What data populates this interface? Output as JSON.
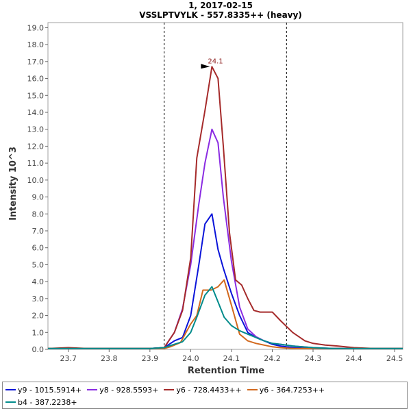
{
  "chart_data": {
    "type": "line",
    "title": "1, 2017-02-15",
    "subtitle": "VSSLPTVYLK - 557.8335++ (heavy)",
    "xlabel": "Retention Time",
    "ylabel": "Intensity 10^3",
    "xlim": [
      23.65,
      24.52
    ],
    "ylim": [
      0,
      19.3
    ],
    "xticks": [
      "23.7",
      "23.8",
      "23.9",
      "24.0",
      "24.1",
      "24.2",
      "24.3",
      "24.4",
      "24.5"
    ],
    "xtick_values": [
      23.7,
      23.8,
      23.9,
      24.0,
      24.1,
      24.2,
      24.3,
      24.4,
      24.5
    ],
    "yticks": [
      "0.0",
      "1.0",
      "2.0",
      "3.0",
      "4.0",
      "5.0",
      "6.0",
      "7.0",
      "8.0",
      "9.0",
      "10.0",
      "11.0",
      "12.0",
      "13.0",
      "14.0",
      "15.0",
      "16.0",
      "17.0",
      "18.0",
      "19.0"
    ],
    "ytick_values": [
      0,
      1,
      2,
      3,
      4,
      5,
      6,
      7,
      8,
      9,
      10,
      11,
      12,
      13,
      14,
      15,
      16,
      17,
      18,
      19
    ],
    "vlines": [
      23.935,
      24.235
    ],
    "peak_annotation": {
      "label": "24.1",
      "x": 24.052,
      "y": 16.7,
      "color": "#8b1a1a"
    },
    "series": [
      {
        "name": "y9 - 1015.5914+",
        "color": "#0a14d9",
        "x": [
          23.65,
          23.7,
          23.75,
          23.8,
          23.85,
          23.9,
          23.935,
          23.96,
          23.98,
          24.0,
          24.02,
          24.035,
          24.052,
          24.067,
          24.08,
          24.1,
          24.12,
          24.14,
          24.16,
          24.18,
          24.2,
          24.22,
          24.25,
          24.3,
          24.35,
          24.4,
          24.45,
          24.52
        ],
        "y": [
          0.05,
          0.05,
          0.05,
          0.05,
          0.05,
          0.05,
          0.1,
          0.5,
          0.7,
          2.0,
          5.0,
          7.4,
          8.0,
          5.9,
          4.8,
          3.3,
          2.0,
          1.0,
          0.7,
          0.5,
          0.3,
          0.2,
          0.1,
          0.05,
          0.05,
          0.05,
          0.05,
          0.05
        ]
      },
      {
        "name": "y8 - 928.5593+",
        "color": "#8a2be2",
        "x": [
          23.65,
          23.7,
          23.75,
          23.8,
          23.85,
          23.9,
          23.935,
          23.96,
          23.98,
          24.0,
          24.02,
          24.035,
          24.052,
          24.067,
          24.08,
          24.1,
          24.12,
          24.14,
          24.16,
          24.18,
          24.2,
          24.22,
          24.25,
          24.3,
          24.35,
          24.4,
          24.45,
          24.52
        ],
        "y": [
          0.05,
          0.05,
          0.05,
          0.05,
          0.05,
          0.05,
          0.1,
          1.0,
          2.4,
          5.0,
          8.6,
          11.0,
          13.0,
          12.2,
          9.0,
          5.2,
          2.5,
          1.2,
          0.75,
          0.5,
          0.35,
          0.3,
          0.2,
          0.1,
          0.05,
          0.05,
          0.05,
          0.05
        ]
      },
      {
        "name": "y6 - 728.4433++",
        "color": "#a52a2a",
        "x": [
          23.65,
          23.7,
          23.75,
          23.8,
          23.85,
          23.9,
          23.935,
          23.96,
          23.98,
          24.0,
          24.015,
          24.035,
          24.052,
          24.067,
          24.08,
          24.095,
          24.11,
          24.125,
          24.14,
          24.155,
          24.17,
          24.2,
          24.22,
          24.25,
          24.28,
          24.3,
          24.33,
          24.36,
          24.4,
          24.45,
          24.52
        ],
        "y": [
          0.05,
          0.1,
          0.05,
          0.05,
          0.05,
          0.05,
          0.1,
          1.0,
          2.3,
          5.4,
          11.3,
          14.1,
          16.7,
          16.0,
          12.0,
          6.9,
          4.1,
          3.8,
          3.0,
          2.3,
          2.2,
          2.2,
          1.7,
          1.0,
          0.5,
          0.35,
          0.25,
          0.2,
          0.1,
          0.05,
          0.05
        ]
      },
      {
        "name": "y6 - 364.7253++",
        "color": "#d2691e",
        "x": [
          23.65,
          23.7,
          23.75,
          23.8,
          23.85,
          23.9,
          23.935,
          23.95,
          23.975,
          24.0,
          24.015,
          24.03,
          24.05,
          24.067,
          24.082,
          24.1,
          24.12,
          24.14,
          24.16,
          24.18,
          24.2,
          24.22,
          24.25,
          24.3,
          24.35,
          24.4,
          24.45,
          24.52
        ],
        "y": [
          0.05,
          0.05,
          0.05,
          0.05,
          0.05,
          0.05,
          0.05,
          0.15,
          0.4,
          1.5,
          2.0,
          3.5,
          3.5,
          3.7,
          4.1,
          2.6,
          0.9,
          0.5,
          0.35,
          0.25,
          0.15,
          0.1,
          0.05,
          0.05,
          0.05,
          0.05,
          0.05,
          0.05
        ]
      },
      {
        "name": "b4 - 387.2238+",
        "color": "#008b8b",
        "x": [
          23.65,
          23.7,
          23.75,
          23.8,
          23.85,
          23.9,
          23.935,
          23.96,
          23.98,
          24.0,
          24.015,
          24.035,
          24.052,
          24.067,
          24.082,
          24.1,
          24.12,
          24.14,
          24.16,
          24.18,
          24.2,
          24.22,
          24.25,
          24.3,
          24.35,
          24.4,
          24.45,
          24.52
        ],
        "y": [
          0.05,
          0.05,
          0.05,
          0.05,
          0.05,
          0.05,
          0.1,
          0.3,
          0.45,
          1.0,
          1.9,
          3.2,
          3.7,
          2.8,
          1.9,
          1.4,
          1.1,
          0.9,
          0.7,
          0.5,
          0.35,
          0.3,
          0.2,
          0.1,
          0.05,
          0.05,
          0.05,
          0.05
        ]
      }
    ]
  }
}
